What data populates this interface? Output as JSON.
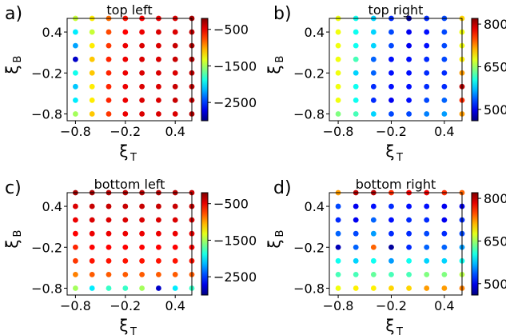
{
  "chart_data": [
    {
      "type": "scatter",
      "panel_letter": "a)",
      "title": "top left",
      "xlabel": {
        "symbol": "ξ",
        "subscript": "T"
      },
      "ylabel": {
        "symbol": "ξ",
        "subscript": "B"
      },
      "x": [
        -0.8,
        -0.6,
        -0.4,
        -0.2,
        0.0,
        0.2,
        0.4,
        0.6
      ],
      "y": [
        -0.8,
        -0.6,
        -0.4,
        -0.2,
        0.0,
        0.2,
        0.4,
        0.6
      ],
      "xlim": [
        -0.9,
        0.6
      ],
      "ylim": [
        -0.9,
        0.6
      ],
      "xticks": [
        -0.8,
        -0.2,
        0.4
      ],
      "yticks": [
        -0.8,
        -0.2,
        0.4
      ],
      "xticklabels": [
        "−0.8",
        "−0.2",
        "0.4"
      ],
      "yticklabels": [
        "−0.8",
        "−0.2",
        "0.4"
      ],
      "colorbar": {
        "range": [
          -3000,
          -200
        ],
        "ticks": [
          -500,
          -1500,
          -2500
        ],
        "ticklabels": [
          "−500",
          "−1500",
          "−2500"
        ],
        "colormap": "jet"
      },
      "values": [
        [
          -1500,
          -1100,
          -700,
          -500,
          -450,
          -450,
          -450,
          -350
        ],
        [
          -2000,
          -1200,
          -650,
          -500,
          -450,
          -450,
          -400,
          -400
        ],
        [
          -2100,
          -1200,
          -650,
          -500,
          -450,
          -450,
          -400,
          -400
        ],
        [
          -1900,
          -1100,
          -650,
          -500,
          -450,
          -450,
          -450,
          -400
        ],
        [
          -2800,
          -1100,
          -650,
          -500,
          -450,
          -450,
          -400,
          -350
        ],
        [
          -2200,
          -1200,
          -700,
          -500,
          -450,
          -450,
          -400,
          -350
        ],
        [
          -2000,
          -1400,
          -750,
          -550,
          -500,
          -450,
          -450,
          -400
        ],
        [
          -1400,
          -1200,
          -850,
          -600,
          -550,
          -500,
          -450,
          -300
        ]
      ]
    },
    {
      "type": "scatter",
      "panel_letter": "b)",
      "title": "top right",
      "xlabel": {
        "symbol": "ξ",
        "subscript": "T"
      },
      "ylabel": {
        "symbol": "ξ",
        "subscript": "B"
      },
      "x": [
        -0.8,
        -0.6,
        -0.4,
        -0.2,
        0.0,
        0.2,
        0.4,
        0.6
      ],
      "y": [
        -0.8,
        -0.6,
        -0.4,
        -0.2,
        0.0,
        0.2,
        0.4,
        0.6
      ],
      "xlim": [
        -0.9,
        0.6
      ],
      "ylim": [
        -0.9,
        0.6
      ],
      "xticks": [
        -0.8,
        -0.2,
        0.4
      ],
      "yticks": [
        -0.8,
        -0.2,
        0.4
      ],
      "xticklabels": [
        "−0.8",
        "−0.2",
        "0.4"
      ],
      "yticklabels": [
        "−0.8",
        "−0.2",
        "0.4"
      ],
      "colorbar": {
        "range": [
          460,
          820
        ],
        "ticks": [
          800,
          650,
          500
        ],
        "ticklabels": [
          "800",
          "650",
          "500"
        ],
        "colormap": "jet"
      },
      "values": [
        [
          640,
          620,
          580,
          530,
          530,
          550,
          560,
          720
        ],
        [
          680,
          600,
          520,
          500,
          510,
          530,
          540,
          760
        ],
        [
          680,
          600,
          520,
          510,
          510,
          520,
          520,
          800
        ],
        [
          680,
          580,
          540,
          510,
          510,
          520,
          520,
          720
        ],
        [
          680,
          620,
          540,
          510,
          510,
          520,
          530,
          690
        ],
        [
          680,
          600,
          580,
          530,
          500,
          510,
          530,
          680
        ],
        [
          680,
          600,
          580,
          530,
          500,
          510,
          530,
          680
        ],
        [
          680,
          600,
          580,
          520,
          470,
          520,
          530,
          700
        ]
      ]
    },
    {
      "type": "scatter",
      "panel_letter": "c)",
      "title": "bottom left",
      "xlabel": {
        "symbol": "ξ",
        "subscript": "T"
      },
      "ylabel": {
        "symbol": "ξ",
        "subscript": "B"
      },
      "x": [
        -0.8,
        -0.6,
        -0.4,
        -0.2,
        0.0,
        0.2,
        0.4,
        0.6
      ],
      "y": [
        -0.8,
        -0.6,
        -0.4,
        -0.2,
        0.0,
        0.2,
        0.4,
        0.6
      ],
      "xlim": [
        -0.9,
        0.6
      ],
      "ylim": [
        -0.9,
        0.6
      ],
      "xticks": [
        -0.8,
        -0.2,
        0.4
      ],
      "yticks": [
        -0.8,
        -0.2,
        0.4
      ],
      "xticklabels": [
        "−0.8",
        "−0.2",
        "0.4"
      ],
      "yticklabels": [
        "−0.8",
        "−0.2",
        "0.4"
      ],
      "colorbar": {
        "range": [
          -3000,
          -200
        ],
        "ticks": [
          -500,
          -1500,
          -2500
        ],
        "ticklabels": [
          "−500",
          "−1500",
          "−2500"
        ],
        "colormap": "jet"
      },
      "values": [
        [
          -1500,
          -2000,
          -1800,
          -1800,
          -1500,
          -2800,
          -2000,
          -1800
        ],
        [
          -900,
          -800,
          -800,
          -800,
          -800,
          -800,
          -800,
          -800
        ],
        [
          -700,
          -600,
          -600,
          -600,
          -600,
          -600,
          -600,
          -600
        ],
        [
          -650,
          -550,
          -550,
          -550,
          -550,
          -550,
          -550,
          -550
        ],
        [
          -550,
          -500,
          -500,
          -500,
          -500,
          -500,
          -500,
          -500
        ],
        [
          -500,
          -450,
          -450,
          -450,
          -450,
          -450,
          -450,
          -450
        ],
        [
          -450,
          -400,
          -400,
          -400,
          -400,
          -400,
          -400,
          -400
        ],
        [
          -300,
          -300,
          -350,
          -350,
          -350,
          -350,
          -350,
          -400
        ]
      ]
    },
    {
      "type": "scatter",
      "panel_letter": "d)",
      "title": "bottom right",
      "xlabel": {
        "symbol": "ξ",
        "subscript": "T"
      },
      "ylabel": {
        "symbol": "ξ",
        "subscript": "B"
      },
      "x": [
        -0.8,
        -0.6,
        -0.4,
        -0.2,
        0.0,
        0.2,
        0.4,
        0.6
      ],
      "y": [
        -0.8,
        -0.6,
        -0.4,
        -0.2,
        0.0,
        0.2,
        0.4,
        0.6
      ],
      "xlim": [
        -0.9,
        0.6
      ],
      "ylim": [
        -0.9,
        0.6
      ],
      "xticks": [
        -0.8,
        -0.2,
        0.4
      ],
      "yticks": [
        -0.8,
        -0.2,
        0.4
      ],
      "xticklabels": [
        "−0.8",
        "−0.2",
        "0.4"
      ],
      "yticklabels": [
        "−0.8",
        "−0.2",
        "0.4"
      ],
      "colorbar": {
        "range": [
          460,
          820
        ],
        "ticks": [
          800,
          650,
          500
        ],
        "ticklabels": [
          "800",
          "650",
          "500"
        ],
        "colormap": "jet"
      },
      "values": [
        [
          680,
          690,
          690,
          700,
          700,
          720,
          720,
          730
        ],
        [
          620,
          620,
          630,
          620,
          620,
          640,
          640,
          660
        ],
        [
          600,
          580,
          600,
          560,
          600,
          580,
          580,
          600
        ],
        [
          480,
          540,
          740,
          470,
          520,
          540,
          540,
          560
        ],
        [
          540,
          530,
          560,
          520,
          520,
          530,
          520,
          530
        ],
        [
          520,
          500,
          540,
          510,
          520,
          520,
          500,
          520
        ],
        [
          530,
          500,
          510,
          520,
          510,
          510,
          500,
          500
        ],
        [
          720,
          800,
          800,
          760,
          780,
          780,
          760,
          740
        ]
      ]
    }
  ]
}
